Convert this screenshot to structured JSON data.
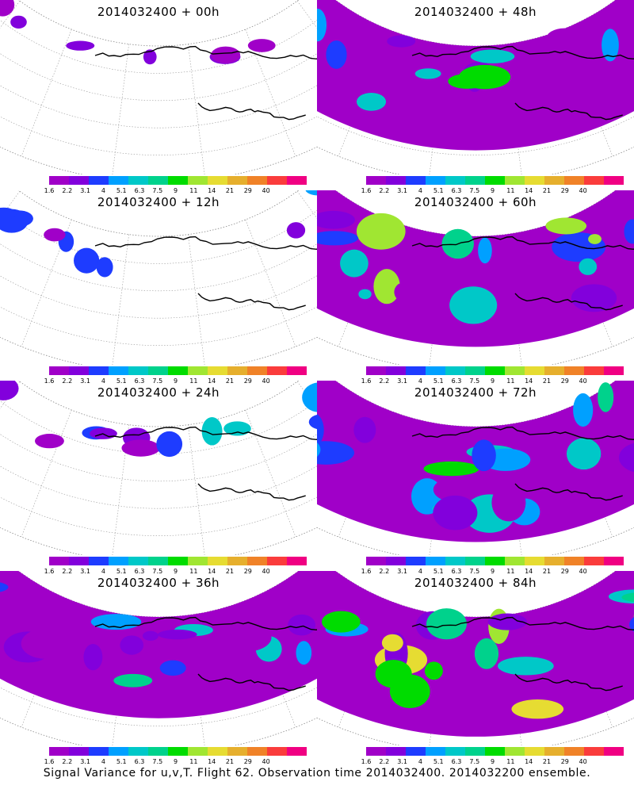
{
  "figure": {
    "caption": "Signal Variance for u,v,T. Flight 62. Observation time 2014032400. 2014032200 ensemble.",
    "colorbar": {
      "labels": [
        "1.6",
        "2.2",
        "3.1",
        "4",
        "5.1",
        "6.3",
        "7.5",
        "9",
        "11",
        "14",
        "21",
        "29",
        "40"
      ],
      "colors": [
        "#a000c8",
        "#8200dc",
        "#1e3cff",
        "#00a0ff",
        "#00c8c8",
        "#00d28c",
        "#00dc00",
        "#a0e632",
        "#e6dc32",
        "#e6af2d",
        "#f08228",
        "#fa3c3c",
        "#f00082"
      ]
    },
    "panels": [
      {
        "title": "2014032400  + 00h",
        "coverage": 0.15
      },
      {
        "title": "2014032400  + 48h",
        "coverage": 0.7
      },
      {
        "title": "2014032400  + 12h",
        "coverage": 0.3
      },
      {
        "title": "2014032400  + 60h",
        "coverage": 0.8
      },
      {
        "title": "2014032400  + 24h",
        "coverage": 0.45
      },
      {
        "title": "2014032400  + 72h",
        "coverage": 0.88
      },
      {
        "title": "2014032400  + 36h",
        "coverage": 0.65
      },
      {
        "title": "2014032400  + 84h",
        "coverage": 0.95
      }
    ]
  }
}
